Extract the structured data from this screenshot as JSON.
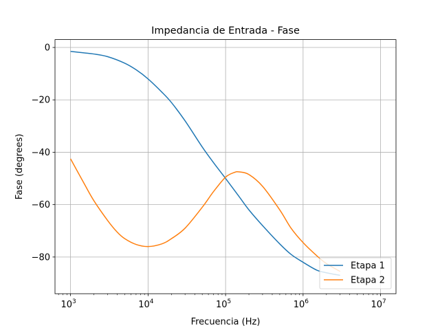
{
  "chart_data": {
    "type": "line",
    "title": "Impedancia de Entrada - Fase",
    "xlabel": "Frecuencia (Hz)",
    "ylabel": "Fase (degrees)",
    "xscale": "log",
    "xlim": [
      630,
      15800000
    ],
    "ylim": [
      -94,
      3
    ],
    "grid": true,
    "legend_position": "bottom-right",
    "xticks": [
      {
        "value": 1000,
        "base": "10",
        "exp": "3"
      },
      {
        "value": 10000,
        "base": "10",
        "exp": "4"
      },
      {
        "value": 100000,
        "base": "10",
        "exp": "5"
      },
      {
        "value": 1000000,
        "base": "10",
        "exp": "6"
      },
      {
        "value": 10000000,
        "base": "10",
        "exp": "7"
      }
    ],
    "yticks": [
      {
        "value": 0,
        "label": "0"
      },
      {
        "value": -20,
        "label": "−20"
      },
      {
        "value": -40,
        "label": "−40"
      },
      {
        "value": -60,
        "label": "−60"
      },
      {
        "value": -80,
        "label": "−80"
      }
    ],
    "series": [
      {
        "name": "Etapa 1",
        "color": "#1f77b4",
        "x": [
          1000,
          2000,
          3000,
          5000,
          7000,
          10000,
          15000,
          20000,
          30000,
          50000,
          70000,
          100000,
          150000,
          200000,
          300000,
          500000,
          700000,
          1000000,
          1500000,
          2000000,
          3000000
        ],
        "y": [
          -1.5,
          -2.5,
          -3.5,
          -6,
          -8.5,
          -12,
          -17,
          -21,
          -28,
          -38,
          -44,
          -50,
          -57,
          -62,
          -68,
          -75,
          -79,
          -82,
          -85,
          -86,
          -87
        ]
      },
      {
        "name": "Etapa 2",
        "color": "#ff7f0e",
        "x": [
          1000,
          1500,
          2000,
          3000,
          4000,
          5000,
          7000,
          10000,
          15000,
          20000,
          30000,
          50000,
          70000,
          100000,
          130000,
          150000,
          200000,
          300000,
          500000,
          700000,
          1000000,
          1500000,
          2000000,
          3000000
        ],
        "y": [
          -42.5,
          -52,
          -58.5,
          -66,
          -70.5,
          -73,
          -75.2,
          -76,
          -75,
          -73,
          -69,
          -61,
          -55,
          -49.5,
          -47.7,
          -47.5,
          -48.5,
          -53,
          -62,
          -69,
          -74.5,
          -79.5,
          -82.5,
          -85.5
        ]
      }
    ]
  }
}
